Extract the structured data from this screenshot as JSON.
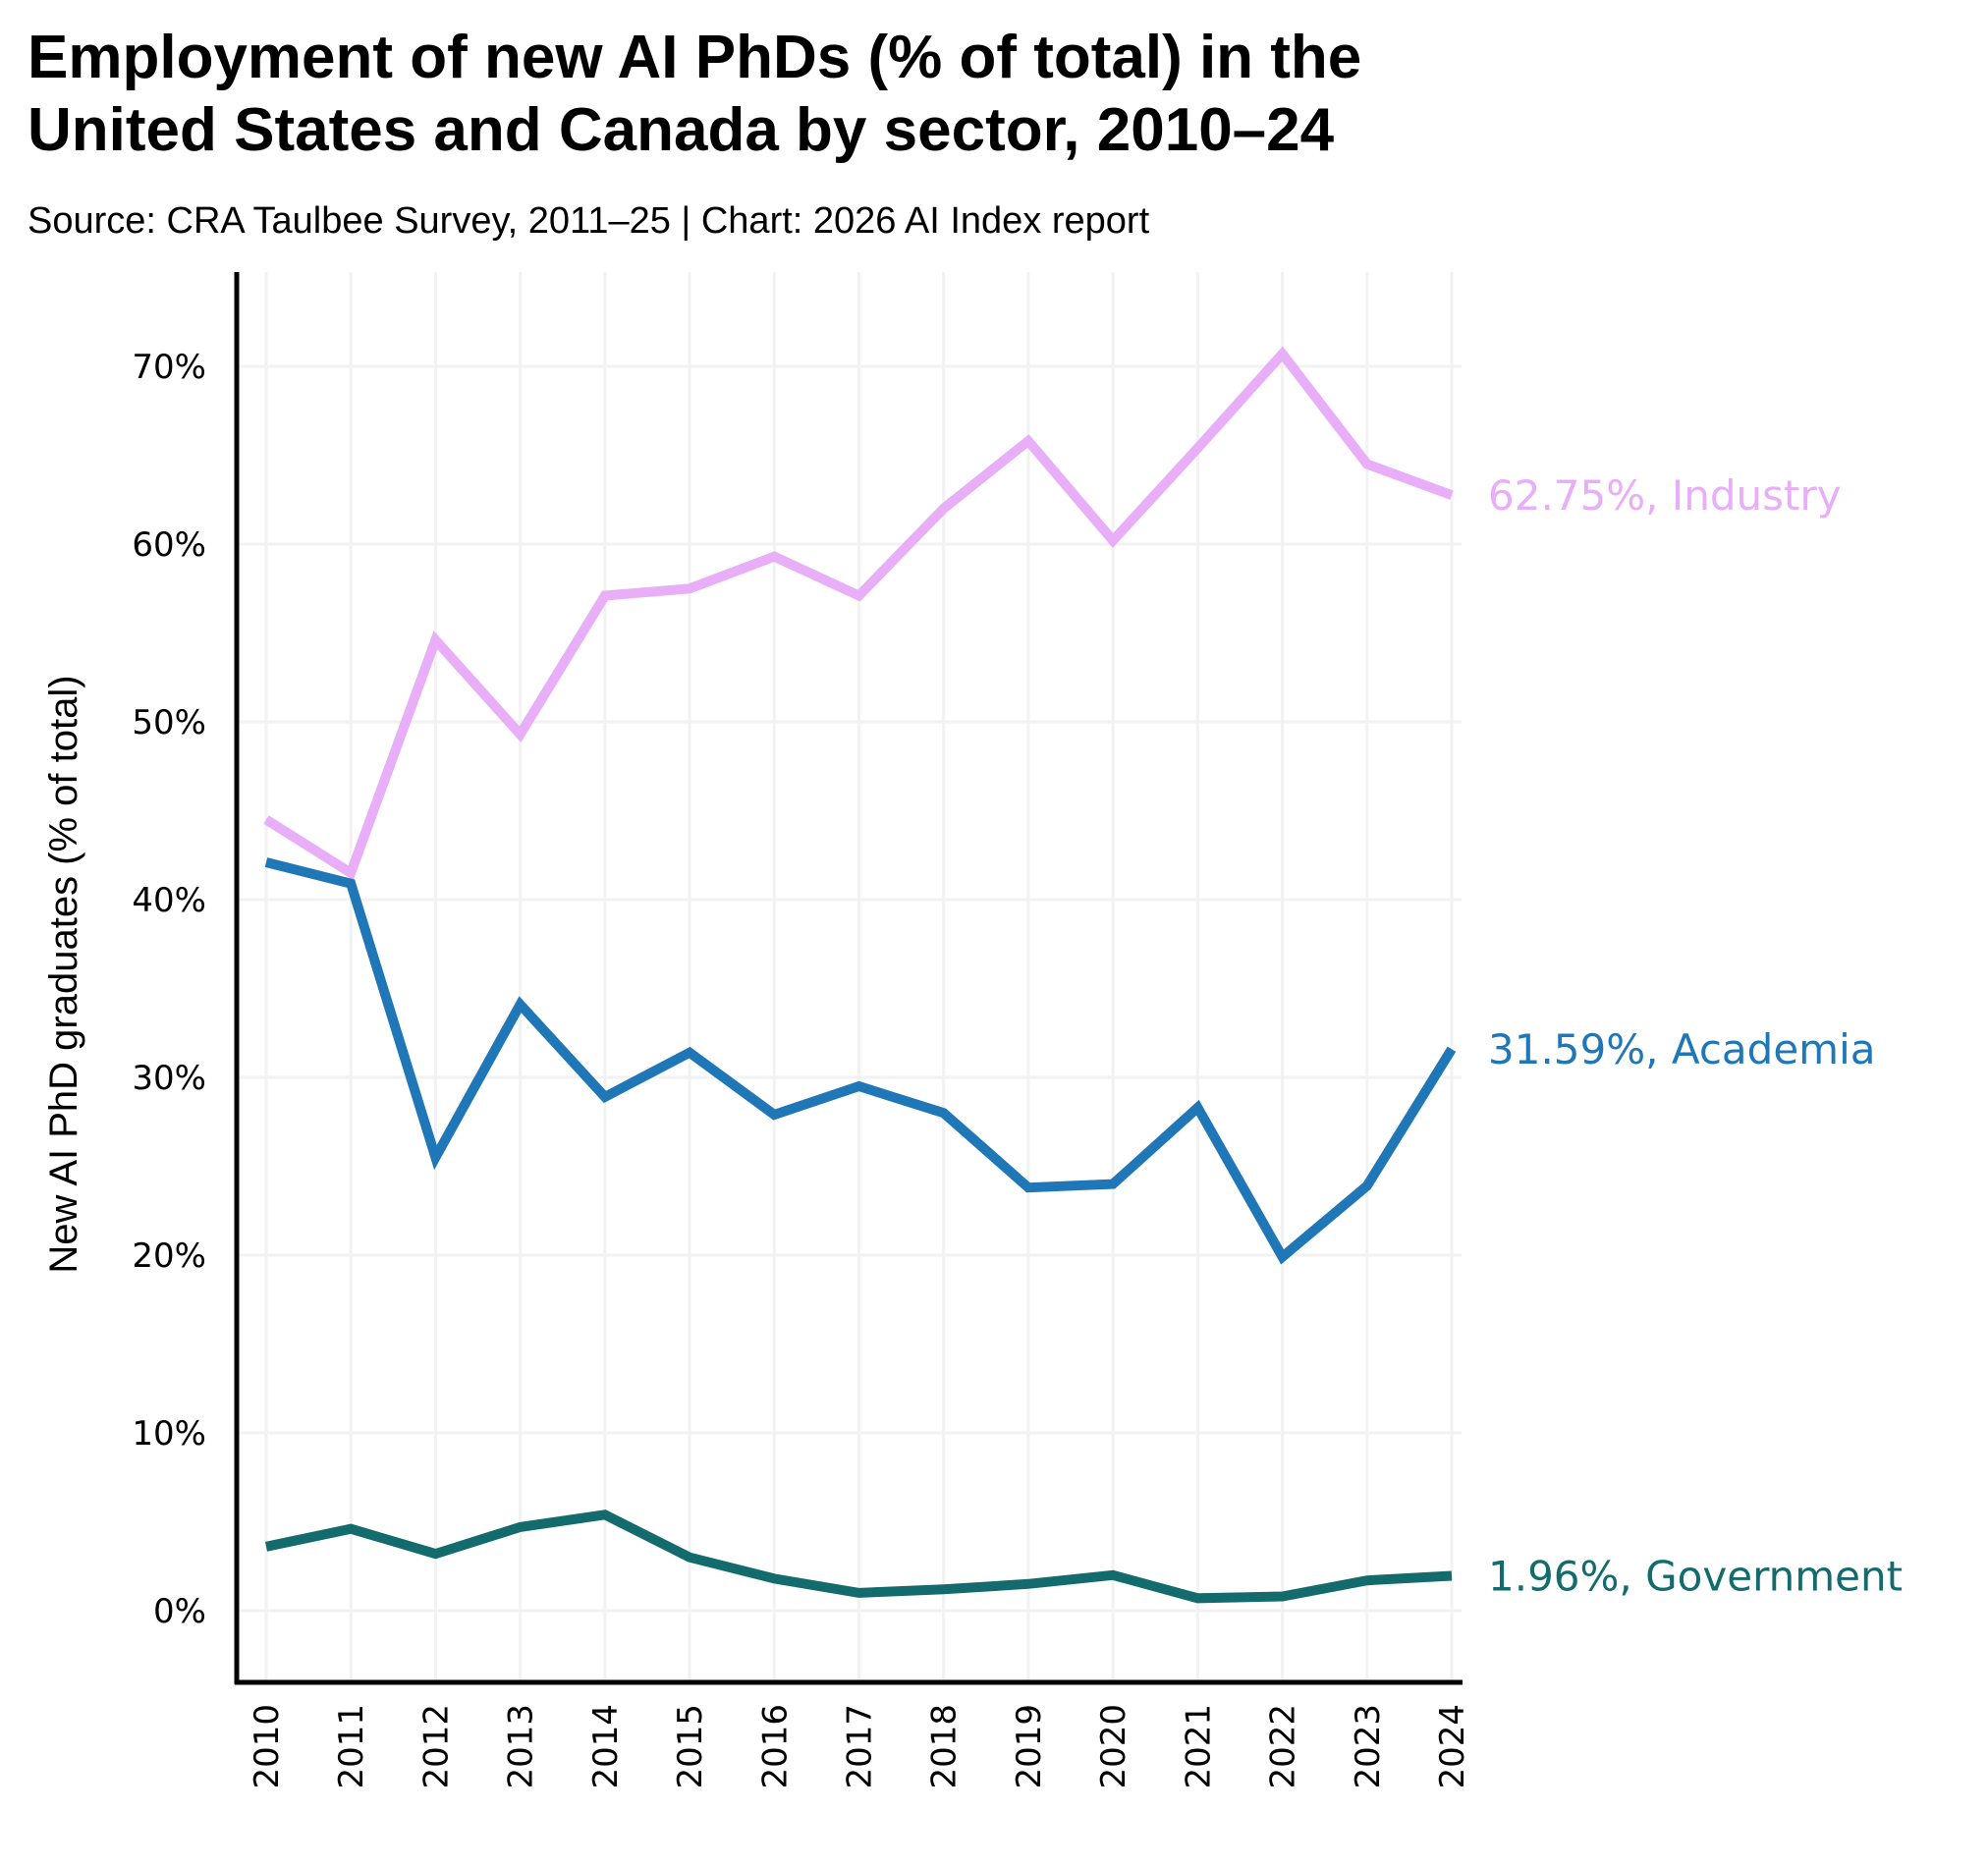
{
  "header": {
    "title_line1": "Employment of new AI PhDs (% of total) in the",
    "title_line2": "United States and Canada by sector, 2010–24",
    "subtitle": "Source: CRA Taulbee Survey, 2011–25 | Chart: 2026 AI Index report"
  },
  "chart_data": {
    "type": "line",
    "title": "Employment of new AI PhDs (% of total) in the United States and Canada by sector, 2010–24",
    "subtitle": "Source: CRA Taulbee Survey, 2011–25 | Chart: 2026 AI Index report",
    "xlabel": "",
    "ylabel": "New AI PhD graduates (% of total)",
    "x": [
      2010,
      2011,
      2012,
      2013,
      2014,
      2015,
      2016,
      2017,
      2018,
      2019,
      2020,
      2021,
      2022,
      2023,
      2024
    ],
    "x_tick_labels": [
      "2010",
      "2011",
      "2012",
      "2013",
      "2014",
      "2015",
      "2016",
      "2017",
      "2018",
      "2019",
      "2020",
      "2021",
      "2022",
      "2023",
      "2024"
    ],
    "ylim": [
      -4,
      75
    ],
    "y_ticks": [
      0,
      10,
      20,
      30,
      40,
      50,
      60,
      70
    ],
    "y_tick_labels": [
      "0%",
      "10%",
      "20%",
      "30%",
      "40%",
      "50%",
      "60%",
      "70%"
    ],
    "grid": true,
    "legend": "end-of-line labels (right)",
    "series": [
      {
        "name": "Industry",
        "color": "#E8AEF8",
        "end_label": "62.75%, Industry",
        "values": [
          44.5,
          41.5,
          54.6,
          49.3,
          57.1,
          57.5,
          59.3,
          57.1,
          62.0,
          65.8,
          60.2,
          65.4,
          70.7,
          64.5,
          62.75
        ]
      },
      {
        "name": "Academia",
        "color": "#1F77B8",
        "end_label": "31.59%, Academia",
        "values": [
          42.1,
          40.9,
          25.5,
          34.1,
          28.9,
          31.4,
          27.9,
          29.5,
          28.0,
          23.8,
          24.0,
          28.3,
          19.9,
          23.9,
          31.59
        ]
      },
      {
        "name": "Government",
        "color": "#136B6E",
        "end_label": "1.96%, Government",
        "values": [
          3.6,
          4.6,
          3.2,
          4.7,
          5.4,
          3.0,
          1.8,
          1.0,
          1.2,
          1.5,
          2.0,
          0.7,
          0.8,
          1.7,
          1.96
        ]
      }
    ]
  }
}
